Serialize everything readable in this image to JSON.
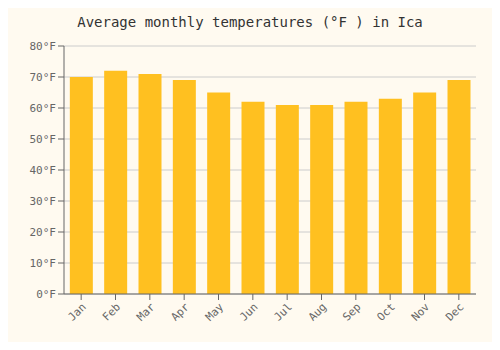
{
  "chart_data": {
    "type": "bar",
    "title": "Average monthly temperatures (°F ) in Ica",
    "categories": [
      "Jan",
      "Feb",
      "Mar",
      "Apr",
      "May",
      "Jun",
      "Jul",
      "Aug",
      "Sep",
      "Oct",
      "Nov",
      "Dec"
    ],
    "values": [
      70,
      72,
      71,
      69,
      65,
      62,
      61,
      61,
      62,
      63,
      65,
      69
    ],
    "color": "#FFC020",
    "ylim": [
      0,
      80
    ],
    "yticks": [
      {
        "value": 0,
        "label": "0°F"
      },
      {
        "value": 10,
        "label": "10°F"
      },
      {
        "value": 20,
        "label": "20°F"
      },
      {
        "value": 30,
        "label": "30°F"
      },
      {
        "value": 40,
        "label": "40°F"
      },
      {
        "value": 50,
        "label": "50°F"
      },
      {
        "value": 60,
        "label": "60°F"
      },
      {
        "value": 70,
        "label": "70°F"
      },
      {
        "value": 80,
        "label": "80°F"
      }
    ],
    "grid": true
  }
}
